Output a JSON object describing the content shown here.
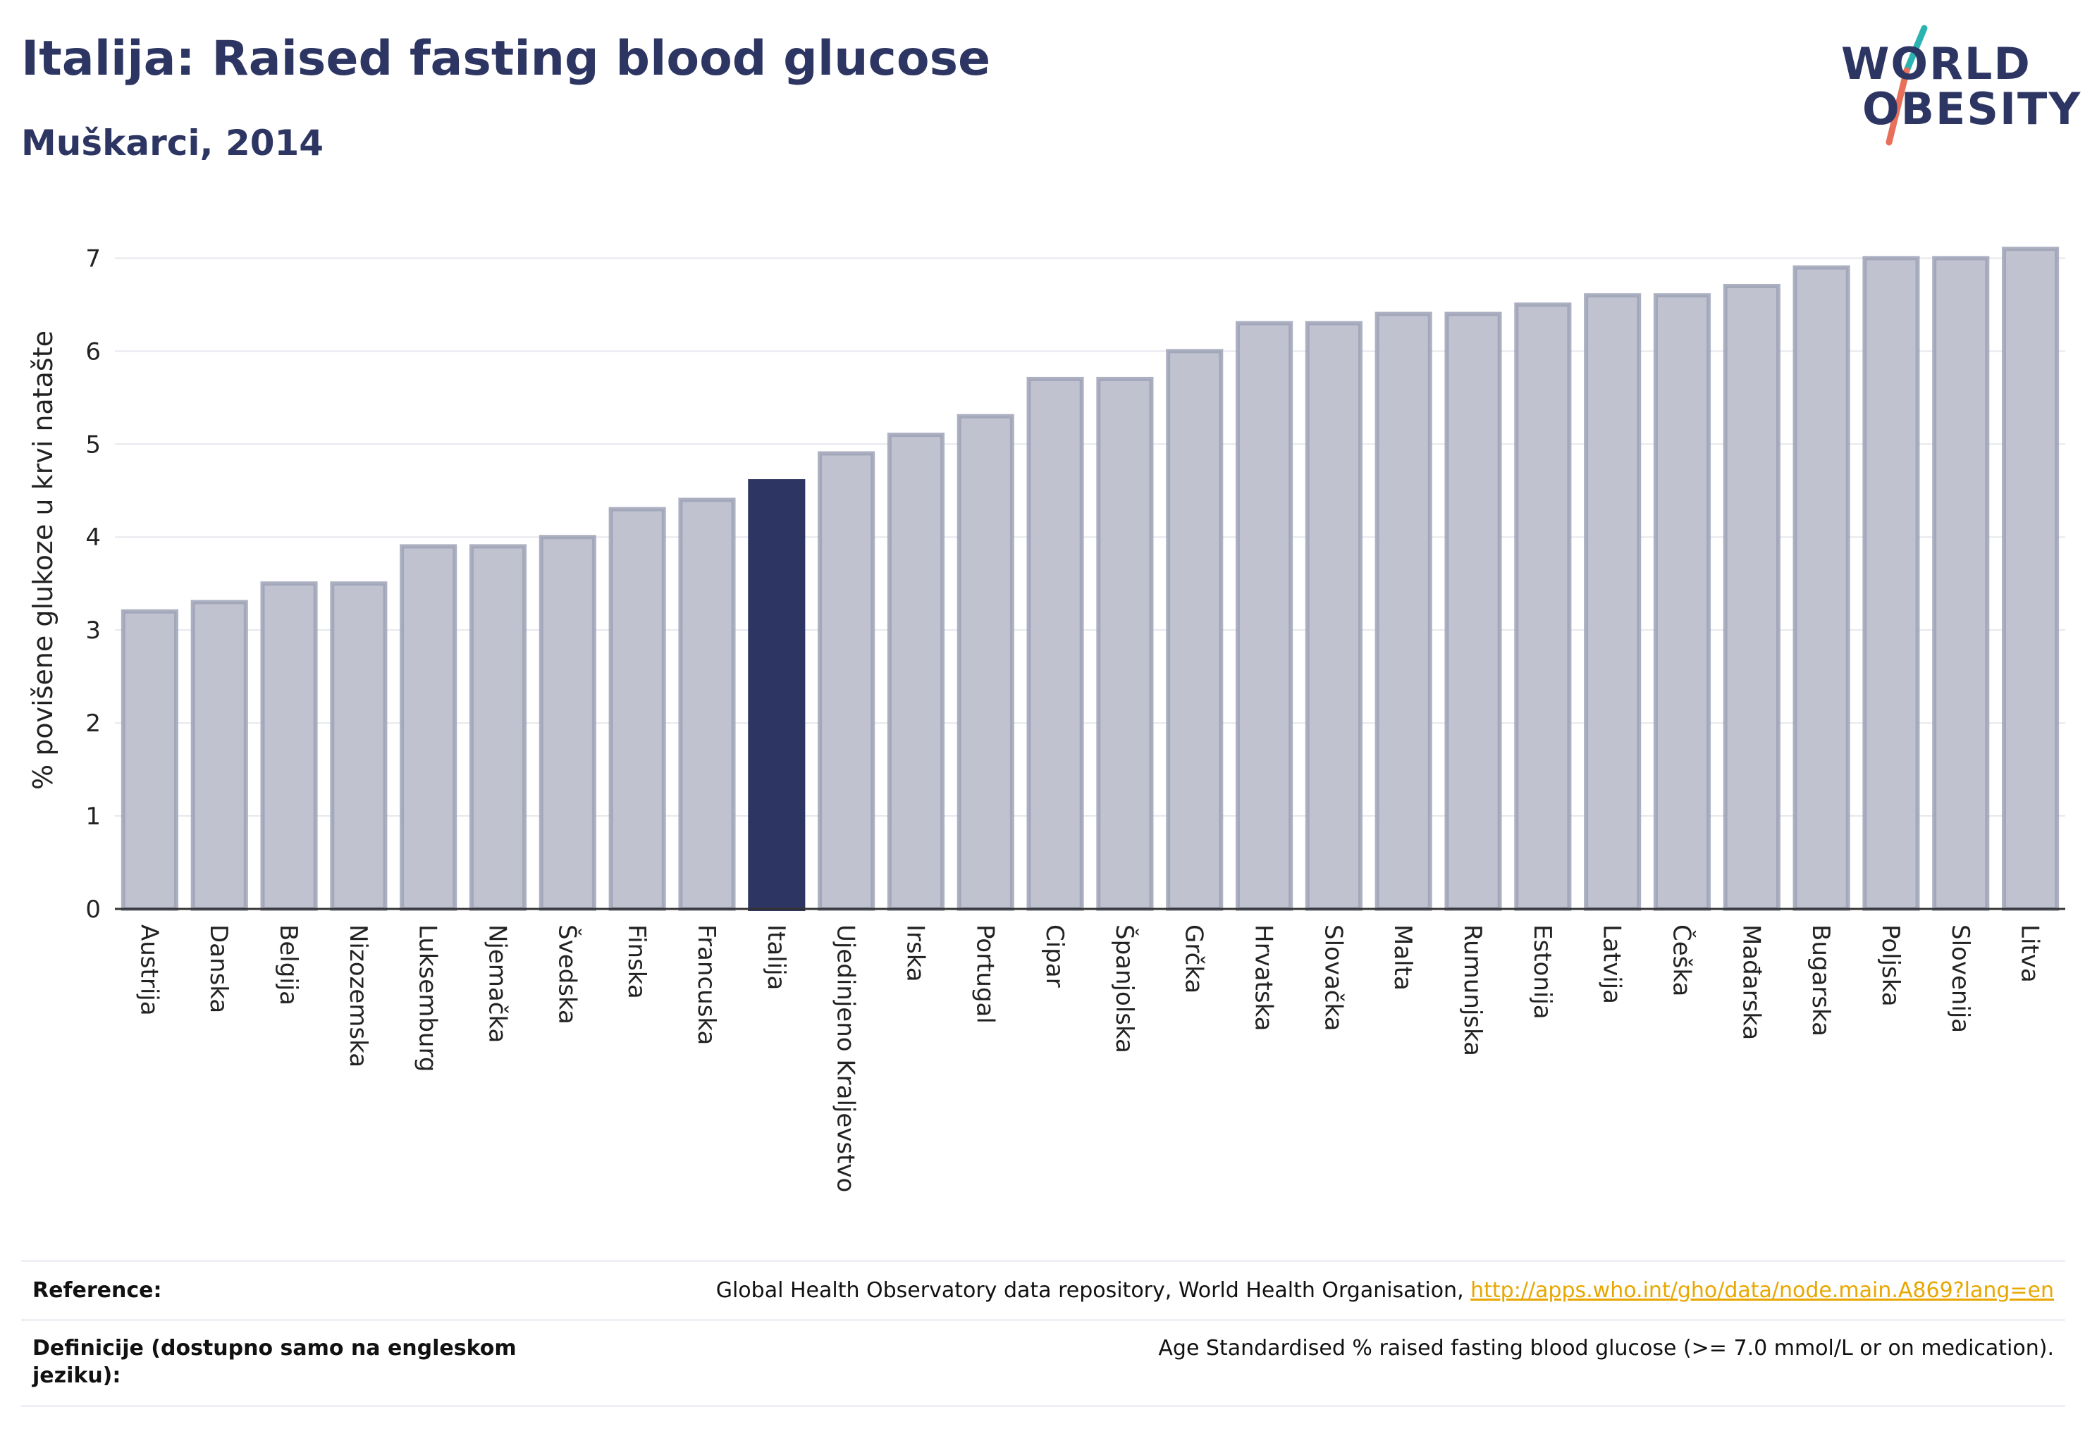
{
  "header": {
    "title": "Italija: Raised fasting blood glucose",
    "subtitle": "Muškarci, 2014"
  },
  "logo": {
    "line1": "WORLD",
    "line2": "OBESITY",
    "accent_teal": "#2bb3b1",
    "accent_coral": "#e8705a"
  },
  "colors": {
    "bar_fill": "#c0c3cf",
    "bar_stroke": "#9da2b6",
    "highlight": "#2d3662",
    "grid": "#e6e8ee",
    "axis": "#333333"
  },
  "chart_data": {
    "type": "bar",
    "title": "Italija: Raised fasting blood glucose",
    "subtitle": "Muškarci, 2014",
    "xlabel": "",
    "ylabel": "% povišene glukoze u krvi natašte",
    "ylim": [
      0,
      7.2
    ],
    "yticks": [
      0,
      1,
      2,
      3,
      4,
      5,
      6,
      7
    ],
    "grid": true,
    "highlight": "Italija",
    "categories": [
      "Austrija",
      "Danska",
      "Belgija",
      "Nizozemska",
      "Luksemburg",
      "Njemačka",
      "Švedska",
      "Finska",
      "Francuska",
      "Italija",
      "Ujedinjeno Kraljevstvo",
      "Irska",
      "Portugal",
      "Cipar",
      "Španjolska",
      "Grčka",
      "Hrvatska",
      "Slovačka",
      "Malta",
      "Rumunjska",
      "Estonija",
      "Latvija",
      "Češka",
      "Mađarska",
      "Bugarska",
      "Poljska",
      "Slovenija",
      "Litva"
    ],
    "values": [
      3.2,
      3.3,
      3.5,
      3.5,
      3.9,
      3.9,
      4.0,
      4.3,
      4.4,
      4.6,
      4.9,
      5.1,
      5.3,
      5.7,
      5.7,
      6.0,
      6.3,
      6.3,
      6.4,
      6.4,
      6.5,
      6.6,
      6.6,
      6.7,
      6.9,
      7.0,
      7.0,
      7.1
    ]
  },
  "footer": {
    "reference_label": "Reference:",
    "reference_text": "Global Health Observatory data repository, World Health Organisation, ",
    "reference_link": "http://apps.who.int/gho/data/node.main.A869?lang=en",
    "definition_label_line1": "Definicije (dostupno samo na engleskom",
    "definition_label_line2": "jeziku):",
    "definition_text": "Age Standardised % raised fasting blood glucose (>= 7.0 mmol/L or on medication)."
  }
}
